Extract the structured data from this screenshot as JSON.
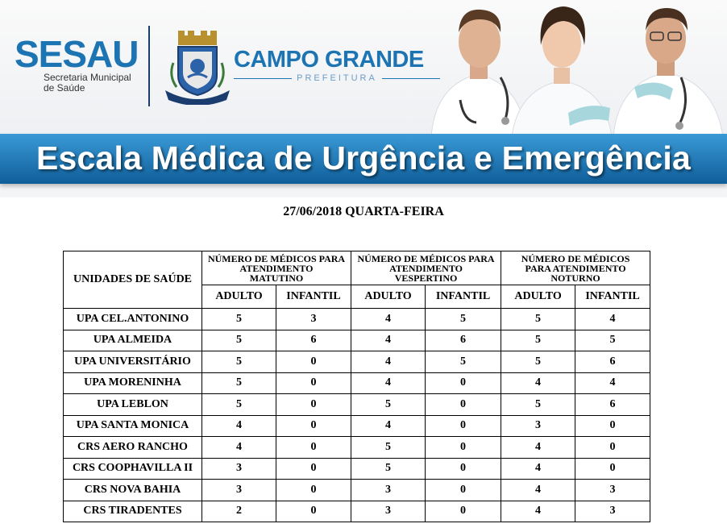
{
  "header": {
    "sesau": {
      "name": "SESAU",
      "subtitle_line1": "Secretaria Municipal",
      "subtitle_line2": "de Saúde"
    },
    "city": {
      "name": "CAMPO GRANDE",
      "subtitle": "PREFEITURA"
    },
    "banner_title": "Escala Médica de Urgência e Emergência",
    "brand_color": "#1c74b3"
  },
  "date": "27/06/2018 QUARTA-FEIRA",
  "table": {
    "unit_header": "UNIDADES DE SAÚDE",
    "groups": [
      {
        "l1": "NÚMERO DE MÉDICOS PARA",
        "l2": "ATENDIMENTO",
        "l3": "MATUTINO"
      },
      {
        "l1": "NÚMERO DE MÉDICOS PARA",
        "l2": "ATENDIMENTO",
        "l3": "VESPERTINO"
      },
      {
        "l1": "NÚMERO DE MÉDICOS",
        "l2": "PARA ATENDIMENTO",
        "l3": "NOTURNO"
      }
    ],
    "sub_headers": [
      "ADULTO",
      "INFANTIL",
      "ADULTO",
      "INFANTIL",
      "ADULTO",
      "INFANTIL"
    ],
    "rows": [
      {
        "unit": "UPA CEL.ANTONINO",
        "values": [
          "5",
          "3",
          "4",
          "5",
          "5",
          "4"
        ]
      },
      {
        "unit": "UPA ALMEIDA",
        "values": [
          "5",
          "6",
          "4",
          "6",
          "5",
          "5"
        ]
      },
      {
        "unit": "UPA UNIVERSITÁRIO",
        "values": [
          "5",
          "0",
          "4",
          "5",
          "5",
          "6"
        ]
      },
      {
        "unit": "UPA MORENINHA",
        "values": [
          "5",
          "0",
          "4",
          "0",
          "4",
          "4"
        ]
      },
      {
        "unit": "UPA LEBLON",
        "values": [
          "5",
          "0",
          "5",
          "0",
          "5",
          "6"
        ]
      },
      {
        "unit": "UPA SANTA MONICA",
        "values": [
          "4",
          "0",
          "4",
          "0",
          "3",
          "0"
        ]
      },
      {
        "unit": "CRS AERO RANCHO",
        "values": [
          "4",
          "0",
          "5",
          "0",
          "4",
          "0"
        ]
      },
      {
        "unit": "CRS COOPHAVILLA II",
        "values": [
          "3",
          "0",
          "5",
          "0",
          "4",
          "0"
        ]
      },
      {
        "unit": "CRS NOVA BAHIA",
        "values": [
          "3",
          "0",
          "3",
          "0",
          "4",
          "3"
        ]
      },
      {
        "unit": "CRS TIRADENTES",
        "values": [
          "2",
          "0",
          "3",
          "0",
          "4",
          "3"
        ]
      }
    ]
  }
}
